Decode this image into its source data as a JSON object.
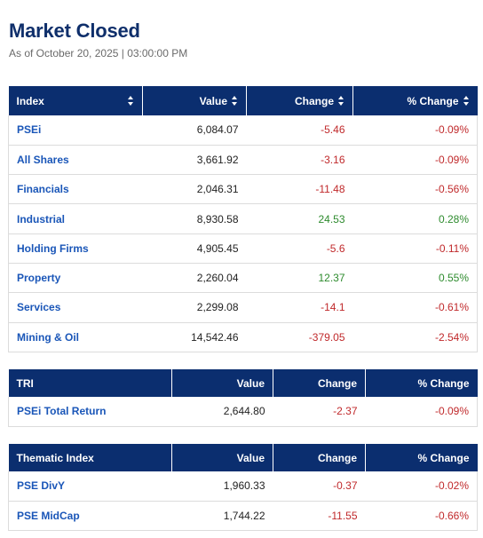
{
  "header": {
    "title": "Market Closed",
    "as_of": "As of October 20, 2025 | 03:00:00 PM"
  },
  "main_table": {
    "columns": [
      "Index",
      "Value",
      "Change",
      "% Change"
    ],
    "rows": [
      {
        "name": "PSEi",
        "value": "6,084.07",
        "change": "-5.46",
        "pct": "-0.09%",
        "dir": "neg"
      },
      {
        "name": "All Shares",
        "value": "3,661.92",
        "change": "-3.16",
        "pct": "-0.09%",
        "dir": "neg"
      },
      {
        "name": "Financials",
        "value": "2,046.31",
        "change": "-11.48",
        "pct": "-0.56%",
        "dir": "neg"
      },
      {
        "name": "Industrial",
        "value": "8,930.58",
        "change": "24.53",
        "pct": "0.28%",
        "dir": "pos"
      },
      {
        "name": "Holding Firms",
        "value": "4,905.45",
        "change": "-5.6",
        "pct": "-0.11%",
        "dir": "neg"
      },
      {
        "name": "Property",
        "value": "2,260.04",
        "change": "12.37",
        "pct": "0.55%",
        "dir": "pos"
      },
      {
        "name": "Services",
        "value": "2,299.08",
        "change": "-14.1",
        "pct": "-0.61%",
        "dir": "neg"
      },
      {
        "name": "Mining & Oil",
        "value": "14,542.46",
        "change": "-379.05",
        "pct": "-2.54%",
        "dir": "neg"
      }
    ]
  },
  "tri_table": {
    "columns": [
      "TRI",
      "Value",
      "Change",
      "% Change"
    ],
    "rows": [
      {
        "name": "PSEi Total Return",
        "value": "2,644.80",
        "change": "-2.37",
        "pct": "-0.09%",
        "dir": "neg"
      }
    ]
  },
  "thematic_table": {
    "columns": [
      "Thematic Index",
      "Value",
      "Change",
      "% Change"
    ],
    "rows": [
      {
        "name": "PSE DivY",
        "value": "1,960.33",
        "change": "-0.37",
        "pct": "-0.02%",
        "dir": "neg"
      },
      {
        "name": "PSE MidCap",
        "value": "1,744.22",
        "change": "-11.55",
        "pct": "-0.66%",
        "dir": "neg"
      }
    ]
  },
  "colors": {
    "header_bg": "#0b2e6f",
    "title": "#0f2f6b",
    "link": "#1a56b8",
    "negative": "#c0292b",
    "positive": "#2e8b2e"
  }
}
